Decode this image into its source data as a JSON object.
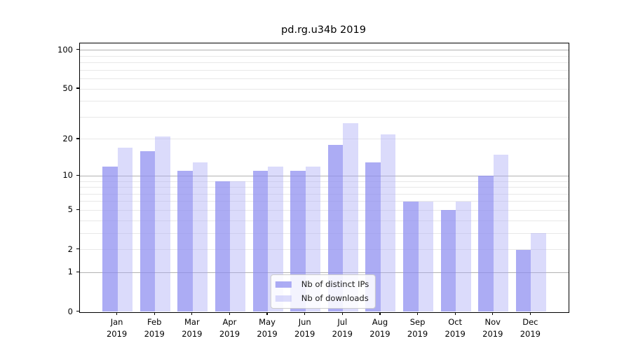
{
  "chart_data": {
    "type": "bar",
    "title": "pd.rg.u34b 2019",
    "year_label": "2019",
    "categories": [
      "Jan",
      "Feb",
      "Mar",
      "Apr",
      "May",
      "Jun",
      "Jul",
      "Aug",
      "Sep",
      "Oct",
      "Nov",
      "Dec"
    ],
    "series": [
      {
        "name": "Nb of distinct IPs",
        "color": "rgba(140,140,240,0.72)",
        "apparent_hex": "#aaaaf4",
        "values": [
          12,
          16,
          11,
          9,
          11,
          11,
          18,
          13,
          6,
          5,
          10,
          2
        ]
      },
      {
        "name": "Nb of downloads",
        "color": "rgba(170,170,245,0.42)",
        "apparent_hex": "#dadaf8",
        "values": [
          17,
          21,
          13,
          9,
          12,
          12,
          27,
          22,
          6,
          6,
          15,
          3
        ]
      }
    ],
    "xlabel": "",
    "ylabel": "",
    "yscale": "log1p",
    "ylim": [
      0,
      113
    ],
    "yticks": [
      0,
      1,
      2,
      5,
      10,
      20,
      50,
      100
    ],
    "grid": true,
    "grid_major": [
      1,
      10,
      100
    ],
    "grid_minor": [
      2,
      3,
      4,
      5,
      6,
      7,
      8,
      9,
      20,
      30,
      40,
      50,
      60,
      70,
      80,
      90
    ],
    "legend_position": "lower center",
    "colors": {
      "grid_major": "#b2b2b2",
      "grid_minor": "#e8e8e8",
      "spine": "#000000",
      "legend_border": "#cccccc",
      "text": "#000000"
    }
  }
}
